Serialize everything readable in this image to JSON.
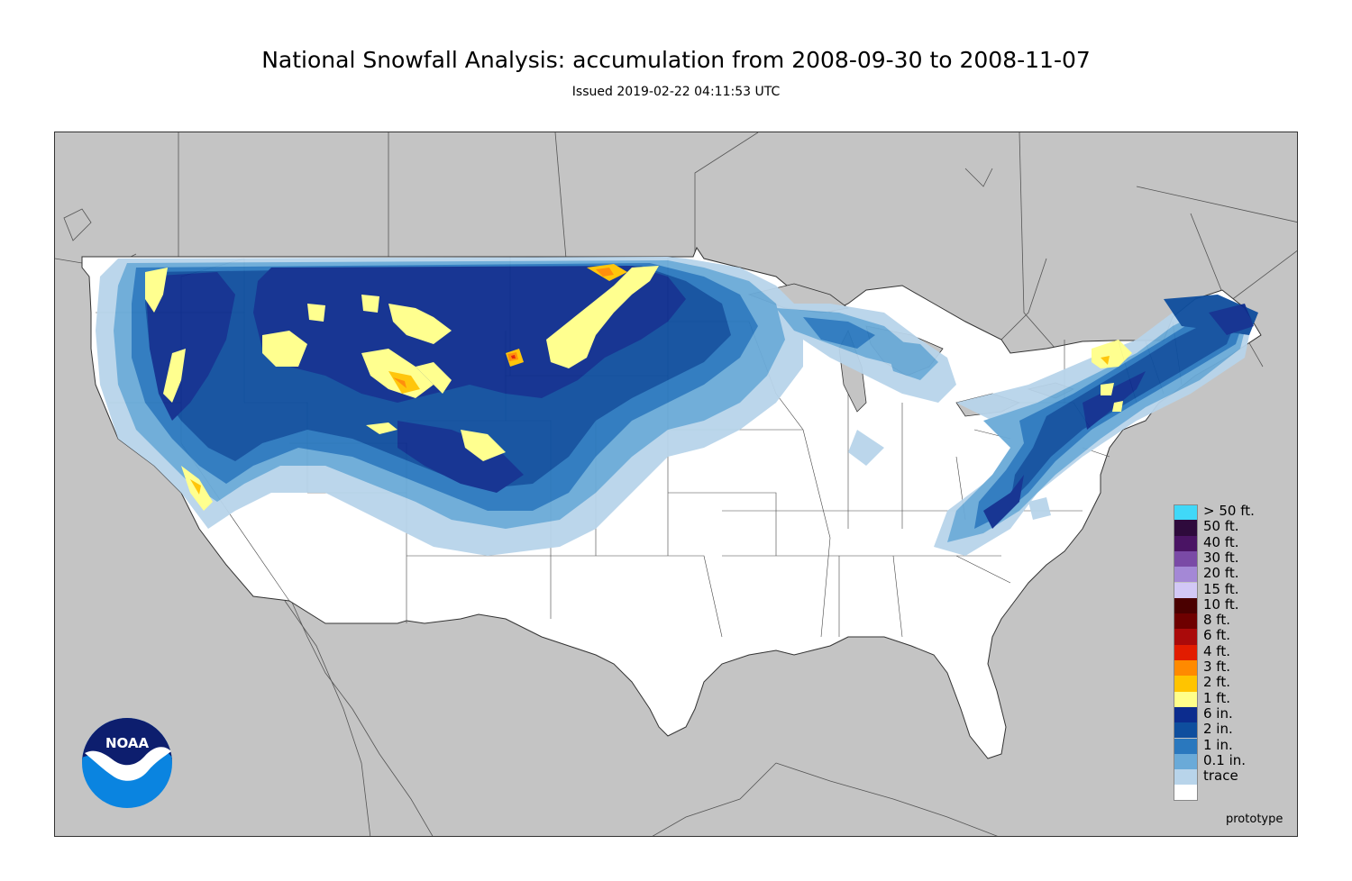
{
  "header": {
    "title": "National Snowfall Analysis: accumulation from 2008-09-30 to 2008-11-07",
    "issued": "Issued 2019-02-22 04:11:53 UTC"
  },
  "map": {
    "background_color": "#c4c4c4",
    "land_color": "#ffffff",
    "border_color": "#555555"
  },
  "legend": {
    "items": [
      {
        "label": "> 50 ft.",
        "color": "#40d8f8"
      },
      {
        "label": "50 ft.",
        "color": "#2e0a3c"
      },
      {
        "label": "40 ft.",
        "color": "#4a1464"
      },
      {
        "label": "30 ft.",
        "color": "#7a4aa6"
      },
      {
        "label": "20 ft.",
        "color": "#a488d6"
      },
      {
        "label": "15 ft.",
        "color": "#d2c8f6"
      },
      {
        "label": "10 ft.",
        "color": "#4a0000"
      },
      {
        "label": "8 ft.",
        "color": "#6e0000"
      },
      {
        "label": "6 ft.",
        "color": "#aa0a0a"
      },
      {
        "label": "4 ft.",
        "color": "#e21c00"
      },
      {
        "label": "3 ft.",
        "color": "#ff8a00"
      },
      {
        "label": "2 ft.",
        "color": "#ffc400"
      },
      {
        "label": "1 ft.",
        "color": "#ffff8a"
      },
      {
        "label": "6 in.",
        "color": "#0c2c8e"
      },
      {
        "label": "2 in.",
        "color": "#0e4e9e"
      },
      {
        "label": "1 in.",
        "color": "#2a78be"
      },
      {
        "label": "0.1 in.",
        "color": "#6aaad8"
      },
      {
        "label": "trace",
        "color": "#b8d4ea"
      },
      {
        "label": "",
        "color": "#ffffff"
      }
    ]
  },
  "footer": {
    "prototype": "prototype"
  },
  "logo": {
    "text": "NOAA",
    "icon": "noaa-logo-icon"
  }
}
